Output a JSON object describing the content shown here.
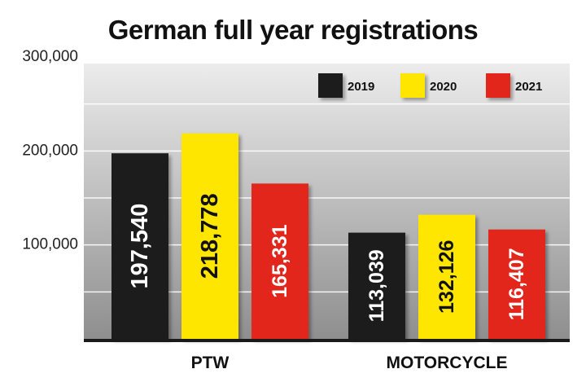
{
  "chart_data": {
    "type": "bar",
    "title": "German full year registrations",
    "xlabel": "",
    "ylabel": "",
    "categories": [
      "PTW",
      "MOTORCYCLE"
    ],
    "series": [
      {
        "name": "2019",
        "color": "#1a1a1a",
        "label_color": "#ffffff",
        "values": [
          197540,
          113039
        ],
        "labels": [
          "197,540",
          "113,039"
        ]
      },
      {
        "name": "2020",
        "color": "#ffe600",
        "label_color": "#111111",
        "values": [
          218778,
          132126
        ],
        "labels": [
          "218,778",
          "132,126"
        ]
      },
      {
        "name": "2021",
        "color": "#e3251b",
        "label_color": "#ffffff",
        "values": [
          165331,
          116407
        ],
        "labels": [
          "165,331",
          "116,407"
        ]
      }
    ],
    "yticks": [
      100000,
      200000,
      300000
    ],
    "ytick_labels": [
      "100,000",
      "200,000",
      "300,000"
    ],
    "ylim": [
      0,
      300000
    ],
    "grid": true,
    "legend_position": "top-right"
  }
}
